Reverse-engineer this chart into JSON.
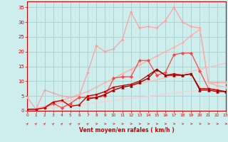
{
  "bg_color": "#ceeeed",
  "grid_color": "#aacfcf",
  "x_values": [
    0,
    1,
    2,
    3,
    4,
    5,
    6,
    7,
    8,
    9,
    10,
    11,
    12,
    13,
    14,
    15,
    16,
    17,
    18,
    19,
    20,
    21,
    22,
    23
  ],
  "series": [
    {
      "color": "#ff9999",
      "lw": 0.8,
      "marker": "+",
      "ms": 3,
      "mew": 0.8,
      "y": [
        4.5,
        0.5,
        7.0,
        6.0,
        5.0,
        4.5,
        5.0,
        13.0,
        22.0,
        20.0,
        21.0,
        24.0,
        33.5,
        28.0,
        28.5,
        28.0,
        30.5,
        35.0,
        30.0,
        28.5,
        28.0,
        9.5,
        9.5,
        9.5
      ]
    },
    {
      "color": "#ffaaaa",
      "lw": 0.9,
      "marker": "+",
      "ms": 3,
      "mew": 0.8,
      "y": [
        0.5,
        0.8,
        1.5,
        2.5,
        3.5,
        4.5,
        5.5,
        6.5,
        8.0,
        9.5,
        11.0,
        12.5,
        14.0,
        15.5,
        17.0,
        18.5,
        20.0,
        21.5,
        23.0,
        25.5,
        27.5,
        9.5,
        8.5,
        8.0
      ]
    },
    {
      "color": "#ffbbbb",
      "lw": 0.9,
      "marker": null,
      "ms": 0,
      "mew": 0,
      "y": [
        0.0,
        0.7,
        1.4,
        2.1,
        2.8,
        3.5,
        4.2,
        4.9,
        5.6,
        6.3,
        7.0,
        7.7,
        8.4,
        9.1,
        9.8,
        10.5,
        11.2,
        11.9,
        12.6,
        13.3,
        14.0,
        14.7,
        15.4,
        16.1
      ]
    },
    {
      "color": "#ffcccc",
      "lw": 0.9,
      "marker": null,
      "ms": 0,
      "mew": 0,
      "y": [
        0.0,
        0.35,
        0.7,
        1.05,
        1.4,
        1.75,
        2.1,
        2.45,
        2.8,
        3.15,
        3.5,
        3.85,
        4.2,
        4.55,
        4.9,
        5.25,
        5.6,
        5.95,
        6.3,
        6.65,
        7.0,
        7.35,
        7.7,
        8.05
      ]
    },
    {
      "color": "#ff4444",
      "lw": 0.9,
      "marker": "D",
      "ms": 2,
      "mew": 0.6,
      "y": [
        0.5,
        0.5,
        1.0,
        2.5,
        1.0,
        2.5,
        4.5,
        4.5,
        4.5,
        5.0,
        11.0,
        11.5,
        11.5,
        17.0,
        17.0,
        12.0,
        13.0,
        19.0,
        19.5,
        19.5,
        13.5,
        7.5,
        7.0,
        6.5
      ]
    },
    {
      "color": "#cc0000",
      "lw": 1.0,
      "marker": "s",
      "ms": 2,
      "mew": 0.6,
      "y": [
        0.5,
        0.5,
        1.0,
        3.0,
        3.5,
        1.5,
        2.0,
        5.0,
        5.5,
        6.5,
        8.0,
        8.5,
        9.0,
        10.0,
        12.0,
        14.0,
        12.0,
        12.5,
        12.0,
        12.5,
        7.5,
        7.5,
        7.0,
        6.5
      ]
    },
    {
      "color": "#990000",
      "lw": 1.0,
      "marker": "^",
      "ms": 2.5,
      "mew": 0.6,
      "y": [
        null,
        null,
        null,
        null,
        null,
        null,
        null,
        4.0,
        4.5,
        5.5,
        7.0,
        8.0,
        8.5,
        9.5,
        11.0,
        14.0,
        12.0,
        12.0,
        12.0,
        12.5,
        7.0,
        7.0,
        6.5,
        6.5
      ]
    }
  ],
  "xlabel": "Vent moyen/en rafales ( km/h )",
  "xlim": [
    0,
    23
  ],
  "ylim": [
    0,
    37
  ],
  "yticks": [
    0,
    5,
    10,
    15,
    20,
    25,
    30,
    35
  ],
  "xticks": [
    0,
    1,
    2,
    3,
    4,
    5,
    6,
    7,
    8,
    9,
    10,
    11,
    12,
    13,
    14,
    15,
    16,
    17,
    18,
    19,
    20,
    21,
    22,
    23
  ],
  "tick_color": "#cc0000",
  "axis_color": "#cc0000",
  "xlabel_color": "#cc0000",
  "arrow_color": "#cc2222"
}
